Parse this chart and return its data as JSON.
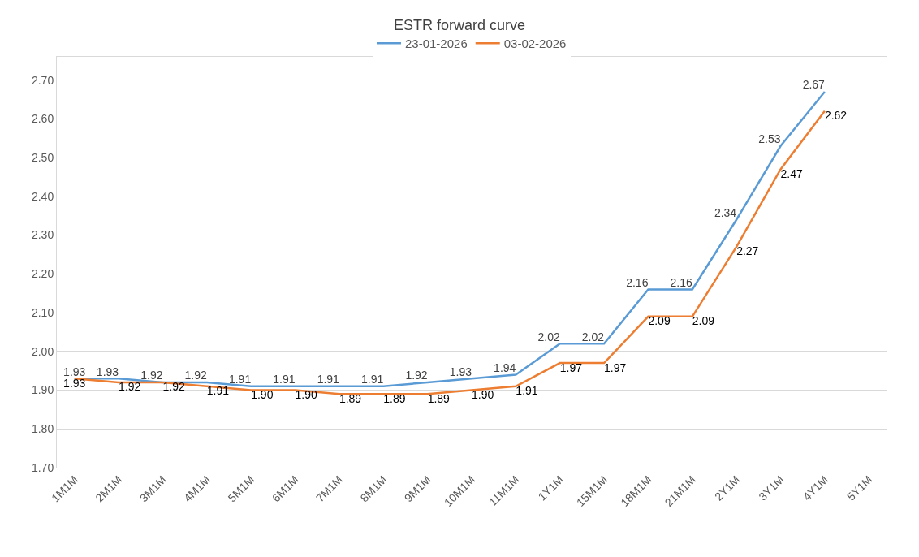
{
  "chart_data": {
    "type": "line",
    "title": "ESTR forward curve",
    "categories": [
      "1M1M",
      "2M1M",
      "3M1M",
      "4M1M",
      "5M1M",
      "6M1M",
      "7M1M",
      "8M1M",
      "9M1M",
      "10M1M",
      "11M1M",
      "1Y1M",
      "15M1M",
      "18M1M",
      "21M1M",
      "2Y1M",
      "3Y1M",
      "4Y1M",
      "5Y1M"
    ],
    "series": [
      {
        "name": "23-01-2026",
        "color": "#5b9bd5",
        "values": [
          1.93,
          1.93,
          1.92,
          1.92,
          1.91,
          1.91,
          1.91,
          1.91,
          1.92,
          1.93,
          1.94,
          2.02,
          2.02,
          2.16,
          2.16,
          2.34,
          2.53,
          2.67,
          null
        ],
        "value_labels": [
          "1.93",
          "1.93",
          "1.92",
          "1.92",
          "1.91",
          "1.91",
          "1.91",
          "1.91",
          "1.92",
          "1.93",
          "1.94",
          "2.02",
          "2.02",
          "2.16",
          "2.16",
          "2.34",
          "2.53",
          "2.67",
          null
        ]
      },
      {
        "name": "03-02-2026",
        "color": "#ed7d31",
        "values": [
          1.93,
          1.92,
          1.92,
          1.91,
          1.9,
          1.9,
          1.89,
          1.89,
          1.89,
          1.9,
          1.91,
          1.97,
          1.97,
          2.09,
          2.09,
          2.27,
          2.47,
          2.62,
          null
        ],
        "value_labels": [
          "1.93",
          "1.92",
          "1.92",
          "1.91",
          "1.90",
          "1.90",
          "1.89",
          "1.89",
          "1.89",
          "1.90",
          "1.91",
          "1.97",
          "1.97",
          "2.09",
          "2.09",
          "2.27",
          "2.47",
          "2.62",
          null
        ]
      }
    ],
    "ylim": [
      1.7,
      2.76
    ],
    "yticks": [
      {
        "value": 1.7,
        "label": "1.70"
      },
      {
        "value": 1.8,
        "label": "1.80"
      },
      {
        "value": 1.9,
        "label": "1.90"
      },
      {
        "value": 2.0,
        "label": "2.00"
      },
      {
        "value": 2.1,
        "label": "2.10"
      },
      {
        "value": 2.2,
        "label": "2.20"
      },
      {
        "value": 2.3,
        "label": "2.30"
      },
      {
        "value": 2.4,
        "label": "2.40"
      },
      {
        "value": 2.5,
        "label": "2.50"
      },
      {
        "value": 2.6,
        "label": "2.60"
      },
      {
        "value": 2.7,
        "label": "2.70"
      }
    ],
    "grid": "y",
    "legend": "top",
    "marker": "none",
    "line_style": "solid"
  }
}
